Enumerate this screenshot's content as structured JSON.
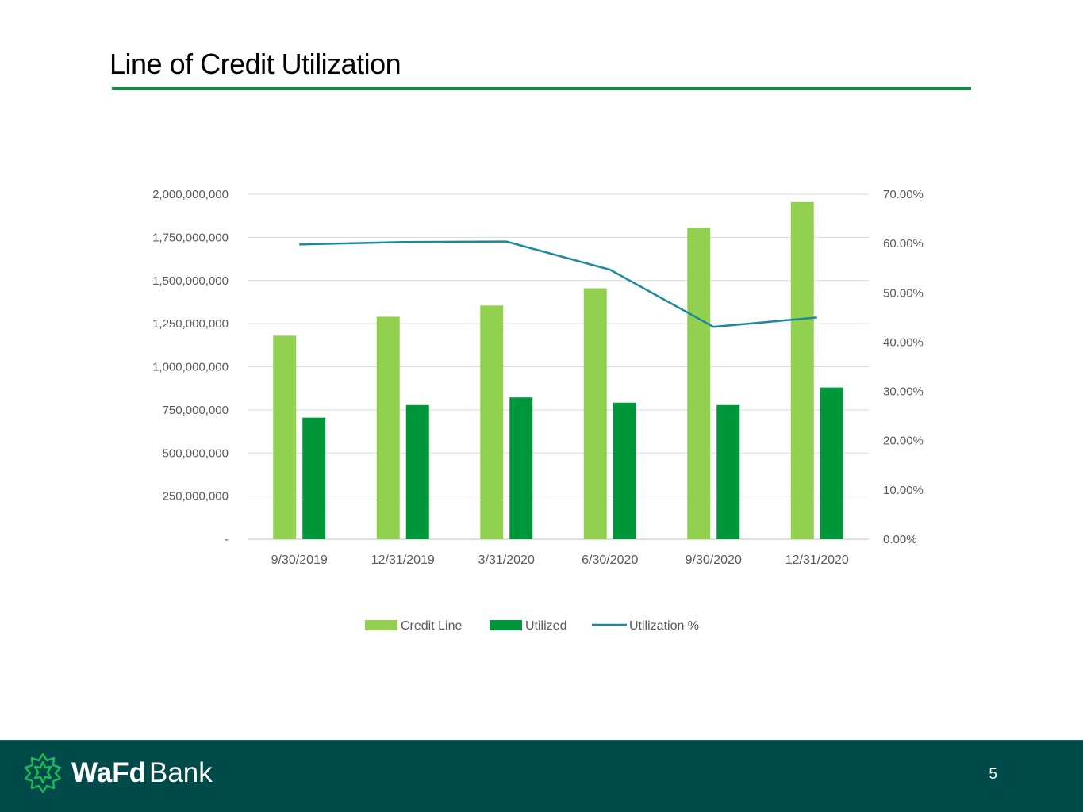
{
  "slide": {
    "title": "Line of Credit Utilization",
    "page_number": "5",
    "accent_color": "#009639"
  },
  "brand": {
    "name_bold": "WaFd",
    "name_light": "Bank",
    "footer_color": "#004a4a",
    "logo_icon": "wafd-star-icon"
  },
  "chart_data": {
    "type": "bar",
    "categories": [
      "9/30/2019",
      "12/31/2019",
      "3/31/2020",
      "6/30/2020",
      "9/30/2020",
      "12/31/2020"
    ],
    "series": [
      {
        "name": "Credit Line",
        "type": "bar",
        "axis": "left",
        "color": "#92d050",
        "values": [
          1180000000,
          1290000000,
          1355000000,
          1455000000,
          1805000000,
          1955000000
        ]
      },
      {
        "name": "Utilized",
        "type": "bar",
        "axis": "left",
        "color": "#00973a",
        "values": [
          705000000,
          778000000,
          822000000,
          792000000,
          778000000,
          880000000
        ]
      },
      {
        "name": "Utilization %",
        "type": "line",
        "axis": "right",
        "color": "#1b8a9a",
        "values": [
          59.8,
          60.3,
          60.4,
          54.7,
          43.1,
          45.0
        ]
      }
    ],
    "y_left": {
      "ylim": [
        0,
        2000000000
      ],
      "ticks": [
        "-",
        "250,000,000",
        "500,000,000",
        "750,000,000",
        "1,000,000,000",
        "1,250,000,000",
        "1,500,000,000",
        "1,750,000,000",
        "2,000,000,000"
      ]
    },
    "y_right": {
      "ylim": [
        0,
        70
      ],
      "ticks": [
        "0.00%",
        "10.00%",
        "20.00%",
        "30.00%",
        "40.00%",
        "50.00%",
        "60.00%",
        "70.00%"
      ]
    },
    "title": "",
    "xlabel": "",
    "ylabel": "",
    "grid": true,
    "legend_position": "bottom"
  }
}
